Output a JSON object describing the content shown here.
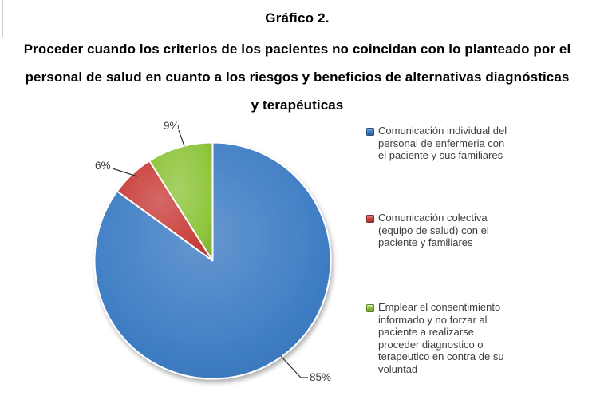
{
  "header": {
    "title": "Gráfico 2.",
    "subtitle_lines": [
      "Proceder cuando los criterios de los pacientes no coincidan con lo planteado por el",
      "personal de salud en cuanto a los riesgos y beneficios de alternativas diagnósticas",
      "y terapéuticas"
    ]
  },
  "chart_data": {
    "type": "pie",
    "title": "Gráfico 2.",
    "direction": "clockwise",
    "start_angle_deg": 0,
    "legend_position": "right",
    "labels_outside": true,
    "slices": [
      {
        "label": "Comunicación individual del personal de enfermeria con el paciente y sus familiares",
        "value": 85,
        "pct_label": "85%",
        "color": "#3E7DC4"
      },
      {
        "label": "Comunicación colectiva (equipo de salud) con el paciente y familiares",
        "value": 6,
        "pct_label": "6%",
        "color": "#C9423E"
      },
      {
        "label": "Emplear el consentimiento informado y no forzar al paciente a realizarse proceder diagnostico o terapeutico en contra de su voluntad",
        "value": 9,
        "pct_label": "9%",
        "color": "#90C63E"
      }
    ]
  },
  "legend": {
    "items": [
      {
        "color": "#3E7DC4",
        "lines": [
          "Comunicación individual del",
          "personal de enfermeria con",
          "el paciente y sus familiares"
        ]
      },
      {
        "color": "#C9423E",
        "lines": [
          "Comunicación colectiva",
          "(equipo de salud) con el",
          "paciente y familiares"
        ]
      },
      {
        "color": "#90C63E",
        "lines": [
          "Emplear el consentimiento",
          "informado y no forzar al",
          "paciente a realizarse",
          "proceder diagnostico o",
          "terapeutico en contra de su",
          "voluntad"
        ]
      }
    ]
  }
}
